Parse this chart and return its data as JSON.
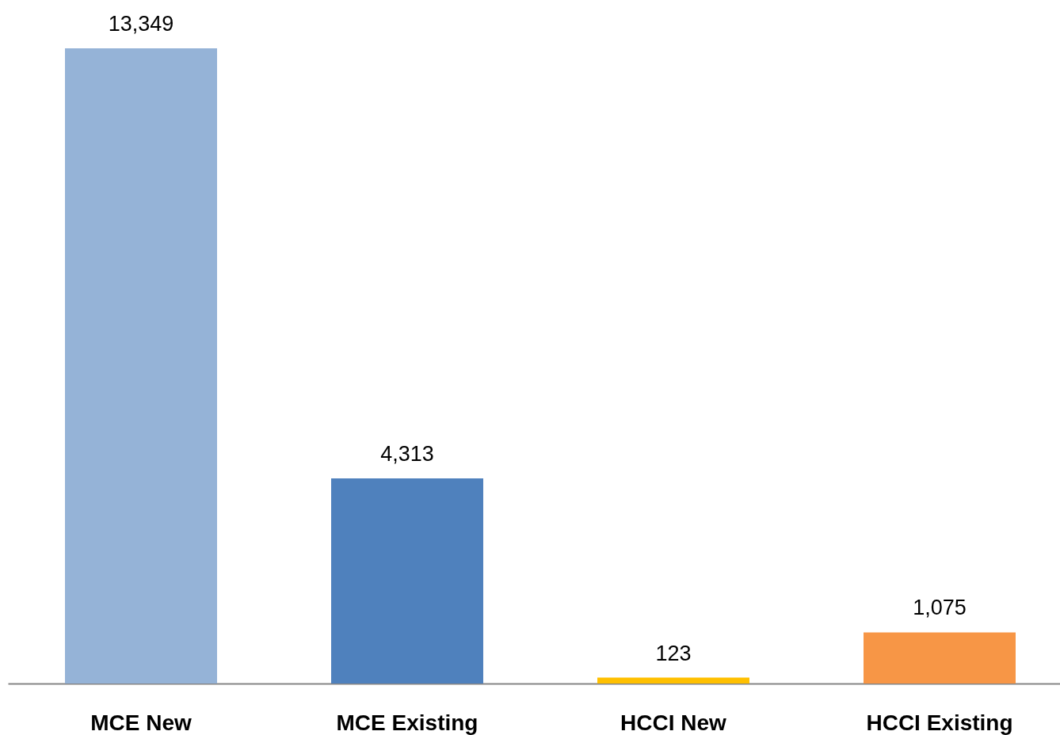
{
  "chart_data": {
    "type": "bar",
    "categories": [
      "MCE New",
      "MCE Existing",
      "HCCI New",
      "HCCI Existing"
    ],
    "values": [
      13349,
      4313,
      123,
      1075
    ],
    "value_labels": [
      "13,349",
      "4,313",
      "123",
      "1,075"
    ],
    "colors": [
      "#95b3d7",
      "#4f81bd",
      "#ffc000",
      "#f79646"
    ]
  }
}
